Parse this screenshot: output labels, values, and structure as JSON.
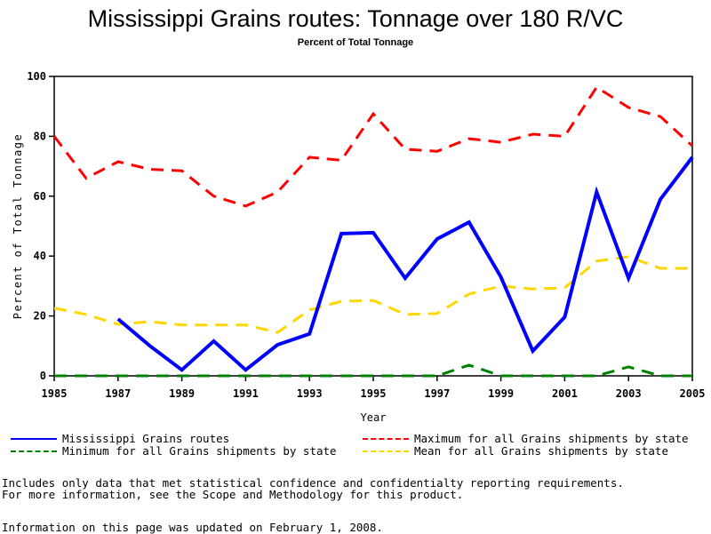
{
  "header": {
    "title": "Mississippi Grains routes: Tonnage over 180 R/VC",
    "subtitle": "Percent of Total Tonnage"
  },
  "chart_data": {
    "type": "line",
    "title": "Mississippi Grains routes: Tonnage over 180 R/VC",
    "subtitle": "Percent of Total Tonnage",
    "xlabel": "Year",
    "ylabel": "Percent of Total Tonnage",
    "xlim": [
      1985,
      2005
    ],
    "ylim": [
      0,
      100
    ],
    "x_ticks": [
      "1985",
      "1987",
      "1989",
      "1991",
      "1993",
      "1995",
      "1997",
      "1999",
      "2001",
      "2003",
      "2005"
    ],
    "y_ticks": [
      "0",
      "20",
      "40",
      "60",
      "80",
      "100"
    ],
    "grid": false,
    "legend_position": "bottom",
    "x": [
      1985,
      1986,
      1987,
      1988,
      1989,
      1990,
      1991,
      1992,
      1993,
      1994,
      1995,
      1996,
      1997,
      1998,
      1999,
      2000,
      2001,
      2002,
      2003,
      2004,
      2005
    ],
    "series": [
      {
        "name": "Mississippi Grains routes",
        "color": "#0000ff",
        "style": "solid",
        "values": [
          null,
          null,
          19,
          10,
          2,
          11.6,
          2,
          10.4,
          14,
          47.5,
          47.8,
          32.6,
          45.7,
          51.3,
          33,
          8.3,
          19.6,
          61.4,
          32.6,
          59,
          73
        ]
      },
      {
        "name": "Maximum for all Grains shipments by state",
        "color": "#ff0000",
        "style": "dashed",
        "values": [
          80,
          66,
          71.5,
          69,
          68.5,
          60,
          56.7,
          61.4,
          73,
          72,
          87.5,
          75.7,
          75,
          79.2,
          78,
          80.7,
          80,
          96.4,
          89.6,
          86.6,
          76.8
        ]
      },
      {
        "name": "Minimum for all Grains shipments by state",
        "color": "#008000",
        "style": "dashed",
        "values": [
          0,
          0,
          0,
          0,
          0,
          0,
          0,
          0,
          0,
          0,
          0,
          0,
          0,
          3.6,
          0,
          0,
          0,
          0,
          3.0,
          0,
          0
        ]
      },
      {
        "name": "Mean for all Grains shipments by state",
        "color": "#ffd700",
        "style": "dashed",
        "values": [
          22.6,
          20.5,
          17.2,
          18.1,
          17,
          17,
          17,
          14.5,
          22,
          24.9,
          25.2,
          20.5,
          20.8,
          27.3,
          30,
          29,
          29.4,
          38.3,
          39.8,
          35.9,
          35.9
        ]
      }
    ]
  },
  "legend": [
    {
      "label": "Mississippi Grains routes",
      "color": "#0000ff",
      "style": "solid"
    },
    {
      "label": "Maximum for all Grains shipments by state",
      "color": "#ff0000",
      "style": "dashed"
    },
    {
      "label": "Minimum for all Grains shipments by state",
      "color": "#008000",
      "style": "dashed"
    },
    {
      "label": "Mean for all Grains shipments by state",
      "color": "#ffd700",
      "style": "dashed"
    }
  ],
  "footnotes": {
    "line1": "Includes only data that met statistical confidence and confidentialty reporting requirements.",
    "line2": "For more information, see the Scope and Methodology for this product.",
    "updated": "Information on this page was updated on February 1, 2008."
  }
}
